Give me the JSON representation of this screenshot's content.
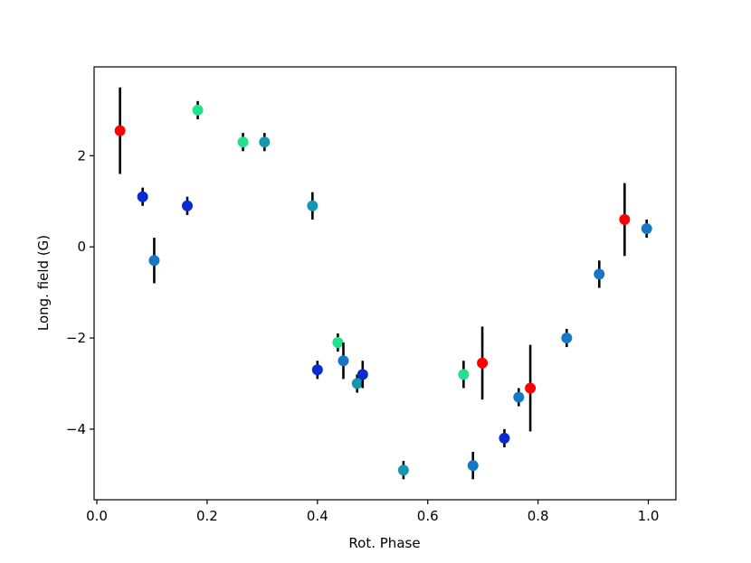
{
  "chart_data": {
    "type": "scatter",
    "title": "",
    "xlabel": "Rot. Phase",
    "ylabel": "Long. field (G)",
    "xlim": [
      -0.005,
      1.05
    ],
    "ylim": [
      -5.55,
      3.95
    ],
    "xticks": [
      0.0,
      0.2,
      0.4,
      0.6,
      0.8,
      1.0
    ],
    "xtick_labels": [
      "0.0",
      "0.2",
      "0.4",
      "0.6",
      "0.8",
      "1.0"
    ],
    "yticks": [
      -4,
      -2,
      0,
      2
    ],
    "ytick_labels": [
      "−4",
      "−2",
      "0",
      "2"
    ],
    "grid": false,
    "legend": "none",
    "errorbar_color": "#000000",
    "points": [
      {
        "x": 0.042,
        "y": 2.55,
        "err": 0.95,
        "color": "#ff0000"
      },
      {
        "x": 0.083,
        "y": 1.1,
        "err": 0.2,
        "color": "#0a2ad2"
      },
      {
        "x": 0.104,
        "y": -0.3,
        "err": 0.5,
        "color": "#1577c6"
      },
      {
        "x": 0.164,
        "y": 0.9,
        "err": 0.2,
        "color": "#0a2ad2"
      },
      {
        "x": 0.183,
        "y": 3.0,
        "err": 0.2,
        "color": "#22e18a"
      },
      {
        "x": 0.265,
        "y": 2.3,
        "err": 0.2,
        "color": "#22e18a"
      },
      {
        "x": 0.304,
        "y": 2.3,
        "err": 0.2,
        "color": "#1696b0"
      },
      {
        "x": 0.391,
        "y": 0.9,
        "err": 0.3,
        "color": "#1696b0"
      },
      {
        "x": 0.4,
        "y": -2.7,
        "err": 0.2,
        "color": "#0a2ad2"
      },
      {
        "x": 0.437,
        "y": -2.1,
        "err": 0.2,
        "color": "#22e18a"
      },
      {
        "x": 0.447,
        "y": -2.5,
        "err": 0.4,
        "color": "#1577c6"
      },
      {
        "x": 0.472,
        "y": -3.0,
        "err": 0.2,
        "color": "#1696b0"
      },
      {
        "x": 0.482,
        "y": -2.8,
        "err": 0.3,
        "color": "#0a2ad2"
      },
      {
        "x": 0.556,
        "y": -4.9,
        "err": 0.2,
        "color": "#1696b0"
      },
      {
        "x": 0.665,
        "y": -2.8,
        "err": 0.3,
        "color": "#22e18a"
      },
      {
        "x": 0.682,
        "y": -4.8,
        "err": 0.3,
        "color": "#1577c6"
      },
      {
        "x": 0.699,
        "y": -2.55,
        "err": 0.8,
        "color": "#ff0000"
      },
      {
        "x": 0.739,
        "y": -4.2,
        "err": 0.2,
        "color": "#0a2ad2"
      },
      {
        "x": 0.765,
        "y": -3.3,
        "err": 0.2,
        "color": "#1577c6"
      },
      {
        "x": 0.786,
        "y": -3.1,
        "err": 0.95,
        "color": "#ff0000"
      },
      {
        "x": 0.852,
        "y": -2.0,
        "err": 0.2,
        "color": "#1577c6"
      },
      {
        "x": 0.911,
        "y": -0.6,
        "err": 0.3,
        "color": "#1577c6"
      },
      {
        "x": 0.957,
        "y": 0.6,
        "err": 0.8,
        "color": "#ff0000"
      },
      {
        "x": 0.997,
        "y": 0.4,
        "err": 0.2,
        "color": "#1577c6"
      }
    ]
  }
}
